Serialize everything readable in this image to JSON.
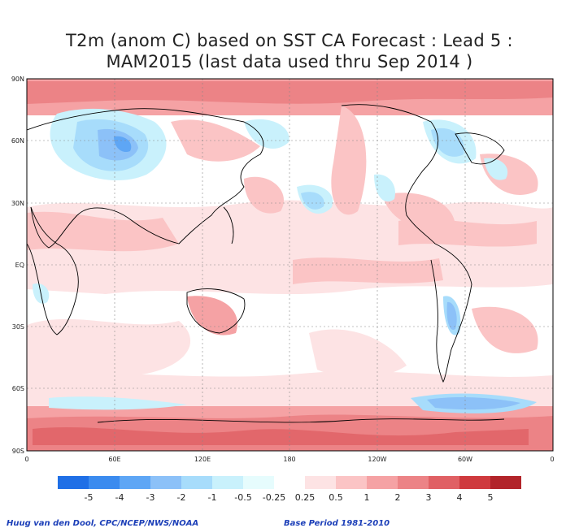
{
  "title_line1": "T2m (anom C) based on SST CA Forecast : Lead 5 :",
  "title_line2": "MAM2015 (last data used thru Sep 2014 )",
  "lat_labels": [
    "90N",
    "60N",
    "30N",
    "EQ",
    "30S",
    "60S",
    "90S"
  ],
  "lon_labels": [
    "0",
    "60E",
    "120E",
    "180",
    "120W",
    "60W",
    "0"
  ],
  "colorbar": {
    "colors": [
      "#1f6fe6",
      "#3b8bef",
      "#5ea6f5",
      "#8cc1f8",
      "#a7dcfb",
      "#c9f1fc",
      "#e6fcfd",
      "#ffffff",
      "#fde3e4",
      "#fbc4c5",
      "#f5a2a4",
      "#ec8386",
      "#e06064",
      "#cf3a3e",
      "#b2242a"
    ],
    "labels": [
      "-5",
      "-4",
      "-3",
      "-2",
      "-1",
      "-0.5",
      "-0.25",
      "0.25",
      "0.5",
      "1",
      "2",
      "3",
      "4",
      "5"
    ]
  },
  "credit_left": "Huug van den Dool, CPC/NCEP/NWS/NOAA",
  "credit_right": "Base Period 1981-2010"
}
